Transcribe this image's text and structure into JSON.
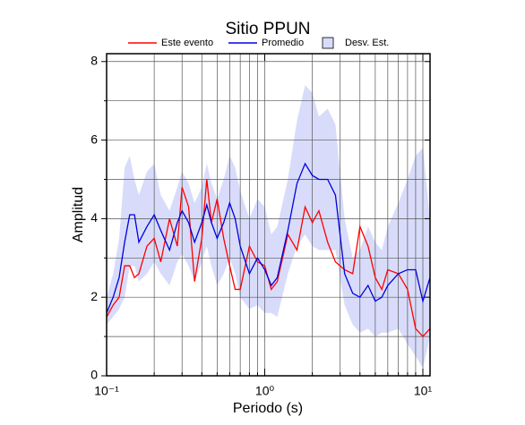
{
  "chart_data": {
    "type": "line",
    "title": "Sitio PPUN",
    "x_label": "Periodo (s)",
    "y_label": "Amplitud",
    "x_scale": "log",
    "grid": true,
    "x": [
      0.1,
      0.11,
      0.12,
      0.13,
      0.14,
      0.15,
      0.16,
      0.18,
      0.2,
      0.22,
      0.25,
      0.28,
      0.3,
      0.33,
      0.36,
      0.4,
      0.43,
      0.46,
      0.5,
      0.55,
      0.6,
      0.65,
      0.7,
      0.8,
      0.9,
      1.0,
      1.1,
      1.2,
      1.4,
      1.6,
      1.8,
      2.0,
      2.2,
      2.5,
      2.8,
      3.2,
      3.6,
      4.0,
      4.5,
      5.0,
      5.5,
      6.0,
      7.0,
      8.0,
      9.0,
      10,
      11.1
    ],
    "series": [
      {
        "name": "Desv. Est.",
        "type": "band",
        "color": "#d8dcfa",
        "upper": [
          2.0,
          2.6,
          3.5,
          5.3,
          5.6,
          5.0,
          4.6,
          5.2,
          5.4,
          4.6,
          4.2,
          4.8,
          5.2,
          4.9,
          4.4,
          4.8,
          5.4,
          4.9,
          4.5,
          5.0,
          5.6,
          5.3,
          4.7,
          4.0,
          4.5,
          4.3,
          3.6,
          3.8,
          5.0,
          6.5,
          7.4,
          7.2,
          6.6,
          6.8,
          6.4,
          4.0,
          3.0,
          3.2,
          3.8,
          3.4,
          3.2,
          3.8,
          4.4,
          5.0,
          5.6,
          5.8,
          4.0
        ],
        "lower": [
          1.3,
          1.5,
          1.7,
          2.0,
          2.8,
          2.8,
          2.4,
          2.6,
          2.9,
          2.6,
          2.3,
          2.9,
          3.1,
          2.8,
          2.4,
          2.9,
          3.3,
          2.8,
          2.3,
          2.6,
          3.0,
          2.6,
          2.0,
          1.7,
          1.8,
          1.6,
          1.6,
          1.5,
          2.6,
          3.3,
          3.6,
          3.3,
          3.2,
          3.2,
          3.2,
          1.8,
          1.3,
          1.1,
          1.2,
          1.0,
          1.1,
          1.1,
          1.2,
          0.8,
          0.5,
          0.2,
          1.0
        ]
      },
      {
        "name": "Este evento",
        "type": "line",
        "color": "#ff0000",
        "values": [
          1.5,
          1.8,
          2.0,
          2.8,
          2.8,
          2.5,
          2.6,
          3.3,
          3.5,
          2.9,
          4.0,
          3.3,
          4.8,
          4.3,
          2.4,
          3.5,
          5.0,
          3.9,
          4.5,
          3.5,
          2.8,
          2.2,
          2.2,
          3.3,
          2.9,
          2.8,
          2.2,
          2.4,
          3.6,
          3.2,
          4.3,
          3.9,
          4.2,
          3.4,
          2.9,
          2.7,
          2.6,
          3.8,
          3.3,
          2.5,
          2.2,
          2.7,
          2.6,
          2.2,
          1.2,
          1.0,
          1.2
        ]
      },
      {
        "name": "Promedio",
        "type": "line",
        "color": "#0000dd",
        "values": [
          1.6,
          2.0,
          2.5,
          3.4,
          4.1,
          4.1,
          3.4,
          3.8,
          4.1,
          3.7,
          3.2,
          3.9,
          4.2,
          3.9,
          3.4,
          3.9,
          4.35,
          3.9,
          3.5,
          3.9,
          4.4,
          4.0,
          3.3,
          2.6,
          3.0,
          2.7,
          2.3,
          2.5,
          3.7,
          4.9,
          5.4,
          5.1,
          5.0,
          5.0,
          4.6,
          2.6,
          2.1,
          2.0,
          2.3,
          1.9,
          2.0,
          2.3,
          2.6,
          2.7,
          2.7,
          1.9,
          2.5
        ]
      }
    ],
    "xlim": [
      0.1,
      11.1
    ],
    "ylim": [
      0,
      8.2
    ],
    "xticks": [
      {
        "value": 0.1,
        "label": "10⁻¹"
      },
      {
        "value": 1,
        "label": "10⁰"
      },
      {
        "value": 10,
        "label": "10¹"
      }
    ],
    "xminor_ticks": [
      0.2,
      0.3,
      0.4,
      0.5,
      0.6,
      0.7,
      0.8,
      0.9,
      2,
      3,
      4,
      5,
      6,
      7,
      8,
      9
    ],
    "yticks": [
      0,
      2,
      4,
      6,
      8
    ],
    "yminor_ticks": [
      1,
      3,
      5,
      7
    ]
  }
}
